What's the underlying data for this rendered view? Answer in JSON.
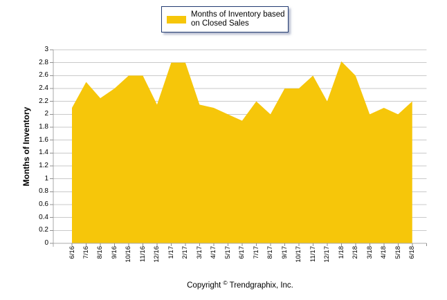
{
  "legend": {
    "label": "Months of Inventory based on Closed Sales"
  },
  "footer": {
    "copyright_prefix": "Copyright",
    "copyright_symbol": "©",
    "copyright_suffix": "Trendgraphix, Inc."
  },
  "colors": {
    "area": "#F6C60A",
    "grid": "#C9C9C9",
    "axis": "#A8A8A8",
    "tick": "#8F8F8F",
    "legend_border": "#223A70",
    "text": "#000000"
  },
  "chart_data": {
    "type": "area",
    "title": "",
    "xlabel": "",
    "ylabel": "Months of Inventory",
    "legend_entries": [
      "Months of Inventory based on Closed Sales"
    ],
    "legend_position": "top-center",
    "grid": "horizontal",
    "ylim": [
      0,
      3
    ],
    "ytick_step": 0.2,
    "x": [
      "6/16",
      "7/16",
      "8/16",
      "9/16",
      "10/16",
      "11/16",
      "12/16",
      "1/17",
      "2/17",
      "3/17",
      "4/17",
      "5/17",
      "6/17",
      "7/17",
      "8/17",
      "9/17",
      "10/17",
      "11/17",
      "12/17",
      "1/18",
      "2/18",
      "3/18",
      "4/18",
      "5/18",
      "6/18"
    ],
    "series": [
      {
        "name": "Months of Inventory based on Closed Sales",
        "color": "#F6C60A",
        "values": [
          2.1,
          2.5,
          2.25,
          2.4,
          2.6,
          2.6,
          2.15,
          2.8,
          2.8,
          2.15,
          2.1,
          2.0,
          1.9,
          2.2,
          2.0,
          2.4,
          2.4,
          2.6,
          2.2,
          2.82,
          2.6,
          2.0,
          2.1,
          2.0,
          2.2
        ]
      }
    ]
  }
}
